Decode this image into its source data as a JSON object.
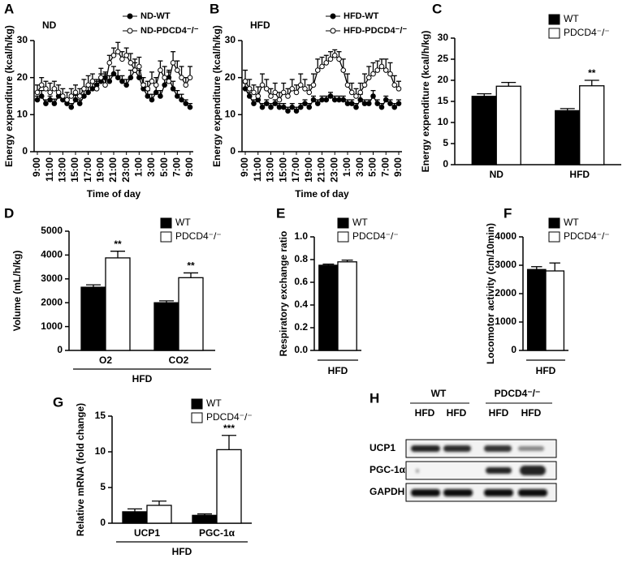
{
  "chart_data": [
    {
      "type": "line",
      "panel": "A",
      "label": "ND",
      "ylabel": "Energy expenditure (kcal/h/kg)",
      "xlabel": "Time of day",
      "categories": [
        "9:00",
        null,
        null,
        "11:00",
        null,
        null,
        "13:00",
        null,
        null,
        "15:00",
        null,
        null,
        "17:00",
        null,
        null,
        "19:00",
        null,
        null,
        "21:00",
        null,
        null,
        "23:00",
        null,
        null,
        "1:00",
        null,
        null,
        "3:00",
        null,
        null,
        "5:00",
        null,
        null,
        "7:00",
        null,
        null,
        "9:00"
      ],
      "ylim": [
        0,
        30
      ],
      "yticks": [
        0,
        10,
        20,
        30
      ],
      "series": [
        {
          "name": "ND-WT",
          "color": "#000000",
          "values": [
            14,
            15,
            13,
            14,
            13,
            15,
            14,
            13,
            12,
            14,
            13,
            15,
            16,
            17,
            18,
            19,
            20,
            19,
            21,
            20,
            19,
            18,
            20,
            22,
            20,
            17,
            15,
            14,
            16,
            15,
            18,
            20,
            17,
            15,
            14,
            13,
            12
          ],
          "errors": [
            1,
            1.5,
            1,
            1,
            1.2,
            1,
            1,
            1,
            1,
            1.2,
            1,
            1.5,
            1.5,
            2,
            1.5,
            2,
            1.5,
            1.5,
            2,
            2,
            1.5,
            1.5,
            2,
            2,
            2,
            1.5,
            1.5,
            1.5,
            2,
            1.5,
            2,
            2,
            2,
            1.5,
            1.5,
            1,
            1
          ]
        },
        {
          "name": "ND-PDCD4⁻/⁻",
          "color": "#ffffff",
          "values": [
            16,
            18,
            17,
            16,
            17,
            16,
            15,
            14,
            15,
            16,
            15,
            17,
            18,
            19,
            17,
            20,
            18,
            24,
            26,
            27,
            25,
            26,
            24,
            22,
            23,
            18,
            17,
            19,
            18,
            22,
            20,
            19,
            24,
            22,
            20,
            18,
            20
          ],
          "errors": [
            2,
            2,
            2,
            2.5,
            2,
            2,
            2,
            2,
            2,
            2,
            2,
            2.5,
            2.5,
            2,
            2,
            2.5,
            3,
            2,
            2,
            2.5,
            2,
            2,
            2.5,
            3,
            2.5,
            2,
            2,
            2.5,
            2,
            2.5,
            3,
            2.5,
            3,
            2.5,
            3,
            2,
            3
          ]
        }
      ]
    },
    {
      "type": "line",
      "panel": "B",
      "label": "HFD",
      "ylabel": "Energy expenditure (kcal/h/kg)",
      "xlabel": "Time of day",
      "categories": [
        "9:00",
        null,
        null,
        "11:00",
        null,
        null,
        "13:00",
        null,
        null,
        "15:00",
        null,
        null,
        "17:00",
        null,
        null,
        "19:00",
        null,
        null,
        "21:00",
        null,
        null,
        "23:00",
        null,
        null,
        "1:00",
        null,
        null,
        "3:00",
        null,
        null,
        "5:00",
        null,
        null,
        "7:00",
        null,
        null,
        "9:00"
      ],
      "ylim": [
        0,
        30
      ],
      "yticks": [
        0,
        10,
        20,
        30
      ],
      "series": [
        {
          "name": "HFD-WT",
          "color": "#000000",
          "values": [
            17,
            15,
            13,
            14,
            12,
            13,
            12,
            13,
            12,
            12,
            11,
            12,
            11,
            12,
            13,
            12,
            14,
            13,
            14,
            14,
            15,
            14,
            14,
            14,
            13,
            13,
            12,
            14,
            13,
            13,
            15,
            13,
            12,
            14,
            13,
            12,
            13
          ],
          "errors": [
            1.5,
            1,
            1,
            1,
            1,
            1,
            1,
            1,
            1,
            1,
            1,
            1,
            1,
            1,
            1,
            1,
            1,
            1,
            1,
            1,
            1,
            1,
            1,
            1,
            1,
            1,
            1,
            1.5,
            1,
            1,
            1.5,
            1,
            1,
            1,
            1,
            1,
            1
          ]
        },
        {
          "name": "HFD-PDCD4⁻/⁻",
          "color": "#ffffff",
          "values": [
            19,
            17,
            16,
            15,
            18,
            17,
            15,
            16,
            14,
            16,
            15,
            17,
            16,
            18,
            17,
            16,
            18,
            22,
            23,
            24,
            25,
            26,
            25,
            22,
            18,
            16,
            15,
            16,
            18,
            20,
            21,
            22,
            23,
            22,
            21,
            18,
            17
          ],
          "errors": [
            3,
            2.5,
            2,
            2.5,
            3,
            2.5,
            2,
            2.5,
            2,
            2.5,
            2,
            2.5,
            2,
            3,
            2.5,
            2,
            3,
            3,
            2.5,
            2,
            2,
            1.5,
            2,
            3,
            3,
            2.5,
            2,
            2.5,
            3,
            3,
            3,
            2.5,
            2,
            3,
            3,
            2.5,
            2
          ]
        }
      ]
    },
    {
      "type": "bar",
      "panel": "C",
      "ylabel": "Energy expenditure (kcal/h/kg)",
      "categories": [
        "ND",
        "HFD"
      ],
      "ylim": [
        0,
        30
      ],
      "yticks": [
        0,
        5,
        10,
        15,
        20,
        25,
        30
      ],
      "series": [
        {
          "name": "WT",
          "color": "#000000",
          "values": [
            16.2,
            12.8
          ],
          "errors": [
            0.6,
            0.5
          ]
        },
        {
          "name": "PDCD4⁻/⁻",
          "color": "#ffffff",
          "values": [
            18.6,
            18.7
          ],
          "errors": [
            0.9,
            1.3
          ]
        }
      ],
      "annotations": [
        {
          "text": "**",
          "category": "HFD",
          "series": "PDCD4⁻/⁻"
        }
      ]
    },
    {
      "type": "bar",
      "panel": "D",
      "ylabel": "Volume (mL/h/kg)",
      "xlabel": "HFD",
      "categories": [
        "O2",
        "CO2"
      ],
      "ylim": [
        0,
        5000
      ],
      "yticks": [
        0,
        1000,
        2000,
        3000,
        4000,
        5000
      ],
      "series": [
        {
          "name": "WT",
          "color": "#000000",
          "values": [
            2650,
            2000
          ],
          "errors": [
            100,
            80
          ]
        },
        {
          "name": "PDCD4⁻/⁻",
          "color": "#ffffff",
          "values": [
            3880,
            3050
          ],
          "errors": [
            280,
            200
          ]
        }
      ],
      "annotations": [
        {
          "text": "**",
          "category": "O2",
          "series": "PDCD4⁻/⁻"
        },
        {
          "text": "**",
          "category": "CO2",
          "series": "PDCD4⁻/⁻"
        }
      ]
    },
    {
      "type": "bar",
      "panel": "E",
      "ylabel": "Respiratory exchange ratio",
      "categories": [
        "HFD"
      ],
      "ylim": [
        0,
        1.0
      ],
      "yticks": [
        {
          "value": 0,
          "label": "0.0"
        },
        0.2,
        0.4,
        0.6,
        0.8,
        {
          "value": 1,
          "label": "1.0"
        }
      ],
      "series": [
        {
          "name": "WT",
          "color": "#000000",
          "values": [
            0.75
          ],
          "errors": [
            0.01
          ]
        },
        {
          "name": "PDCD4⁻/⁻",
          "color": "#ffffff",
          "values": [
            0.78
          ],
          "errors": [
            0.015
          ]
        }
      ]
    },
    {
      "type": "bar",
      "panel": "F",
      "ylabel": "Locomotor activity (cm/10min)",
      "categories": [
        "HFD"
      ],
      "ylim": [
        0,
        4000
      ],
      "yticks": [
        0,
        1000,
        2000,
        3000,
        4000
      ],
      "series": [
        {
          "name": "WT",
          "color": "#000000",
          "values": [
            2850
          ],
          "errors": [
            100
          ]
        },
        {
          "name": "PDCD4⁻/⁻",
          "color": "#ffffff",
          "values": [
            2800
          ],
          "errors": [
            280
          ]
        }
      ]
    },
    {
      "type": "bar",
      "panel": "G",
      "ylabel": "Relative mRNA (fold change)",
      "xlabel": "HFD",
      "categories": [
        "UCP1",
        "PGC-1α"
      ],
      "ylim": [
        0,
        15
      ],
      "yticks": [
        0,
        5,
        10,
        15
      ],
      "series": [
        {
          "name": "WT",
          "color": "#000000",
          "values": [
            1.6,
            1.1
          ],
          "errors": [
            0.4,
            0.2
          ]
        },
        {
          "name": "PDCD4⁻/⁻",
          "color": "#ffffff",
          "values": [
            2.5,
            10.3
          ],
          "errors": [
            0.6,
            2.0
          ]
        }
      ],
      "annotations": [
        {
          "text": "***",
          "category": "PGC-1α",
          "series": "PDCD4⁻/⁻"
        }
      ]
    }
  ],
  "blot": {
    "panel": "H",
    "groups": [
      "WT",
      "PDCD4⁻/⁻"
    ],
    "lanes": [
      "HFD",
      "HFD",
      "HFD",
      "HFD"
    ],
    "rows": [
      "UCP1",
      "PGC-1α",
      "GAPDH"
    ]
  }
}
